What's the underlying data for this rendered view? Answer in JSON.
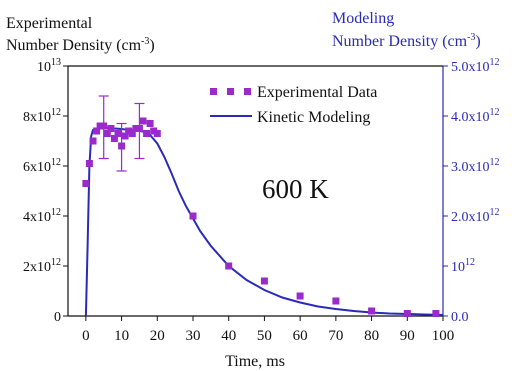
{
  "chart_data": {
    "type": "scatter",
    "left_axis_title_line1": "Experimental",
    "left_axis_title_line2": "Number Density (cm",
    "left_axis_title_sup": "-3",
    "left_axis_title_close": ")",
    "right_axis_title_line1": "Modeling",
    "right_axis_title_line2": "Number Density (cm",
    "right_axis_title_sup": "-3",
    "right_axis_title_close": ")",
    "xlabel": "Time, ms",
    "annotation": "600 K",
    "xlim": [
      -5,
      100
    ],
    "ylim_left": [
      0,
      10000000000000.0
    ],
    "ylim_right": [
      0,
      5000000000000.0
    ],
    "grid": false,
    "legend_position": "top-right",
    "x_ticks": [
      "0",
      "10",
      "20",
      "30",
      "40",
      "50",
      "60",
      "70",
      "80",
      "90",
      "100"
    ],
    "left_ticks": [
      {
        "base": "0",
        "sup": ""
      },
      {
        "base": "2x10",
        "sup": "12"
      },
      {
        "base": "4x10",
        "sup": "12"
      },
      {
        "base": "6x10",
        "sup": "12"
      },
      {
        "base": "8x10",
        "sup": "12"
      },
      {
        "base": "10",
        "sup": "13"
      }
    ],
    "right_ticks": [
      {
        "base": "0.0",
        "sup": ""
      },
      {
        "base": "10",
        "sup": "12"
      },
      {
        "base": "2.0x10",
        "sup": "12"
      },
      {
        "base": "3.0x10",
        "sup": "12"
      },
      {
        "base": "4.0x10",
        "sup": "12"
      },
      {
        "base": "5.0x10",
        "sup": "12"
      }
    ],
    "series": [
      {
        "name": "Experimental Data",
        "axis": "left",
        "color": "#9a2ac9",
        "marker": "square",
        "x": [
          0,
          1,
          2,
          3,
          4,
          5,
          6,
          7,
          8,
          9,
          10,
          11,
          12,
          13,
          14,
          15,
          16,
          17,
          18,
          19,
          20,
          30,
          40,
          50,
          60,
          70,
          80,
          90,
          98
        ],
        "y": [
          5300000000000.0,
          6100000000000.0,
          7000000000000.0,
          7400000000000.0,
          7600000000000.0,
          7600000000000.0,
          7300000000000.0,
          7500000000000.0,
          7100000000000.0,
          7300000000000.0,
          6800000000000.0,
          7200000000000.0,
          7400000000000.0,
          7300000000000.0,
          7500000000000.0,
          7500000000000.0,
          7800000000000.0,
          7300000000000.0,
          7700000000000.0,
          7400000000000.0,
          7300000000000.0,
          4000000000000.0,
          2000000000000.0,
          1400000000000.0,
          800000000000.0,
          600000000000.0,
          200000000000.0,
          100000000000.0,
          100000000000.0
        ],
        "error_bars": [
          {
            "x": 5,
            "y": 7600000000000.0,
            "low": 6300000000000.0,
            "high": 8800000000000.0
          },
          {
            "x": 10,
            "y": 6800000000000.0,
            "low": 5800000000000.0,
            "high": 7700000000000.0
          },
          {
            "x": 15,
            "y": 7500000000000.0,
            "low": 6300000000000.0,
            "high": 8500000000000.0
          }
        ]
      },
      {
        "name": "Kinetic Modeling",
        "axis": "right",
        "color": "#2a2ab8",
        "type": "line",
        "x": [
          0,
          0.5,
          1,
          1.5,
          2,
          3,
          4,
          5,
          6,
          8,
          10,
          12,
          14,
          16,
          18,
          20,
          22,
          24,
          26,
          28,
          30,
          32,
          35,
          40,
          45,
          50,
          55,
          60,
          65,
          70,
          75,
          80,
          85,
          90,
          95,
          100
        ],
        "y": [
          0.0,
          1400000000000.0,
          3000000000000.0,
          3600000000000.0,
          3720000000000.0,
          3750000000000.0,
          3760000000000.0,
          3760000000000.0,
          3760000000000.0,
          3750000000000.0,
          3740000000000.0,
          3720000000000.0,
          3710000000000.0,
          3690000000000.0,
          3620000000000.0,
          3450000000000.0,
          3180000000000.0,
          2850000000000.0,
          2500000000000.0,
          2200000000000.0,
          1950000000000.0,
          1700000000000.0,
          1400000000000.0,
          1000000000000.0,
          720000000000.0,
          520000000000.0,
          370000000000.0,
          270000000000.0,
          190000000000.0,
          140000000000.0,
          100000000000.0,
          70000000000.0,
          50000000000.0,
          40000000000.0,
          30000000000.0,
          20000000000.0
        ]
      }
    ]
  }
}
